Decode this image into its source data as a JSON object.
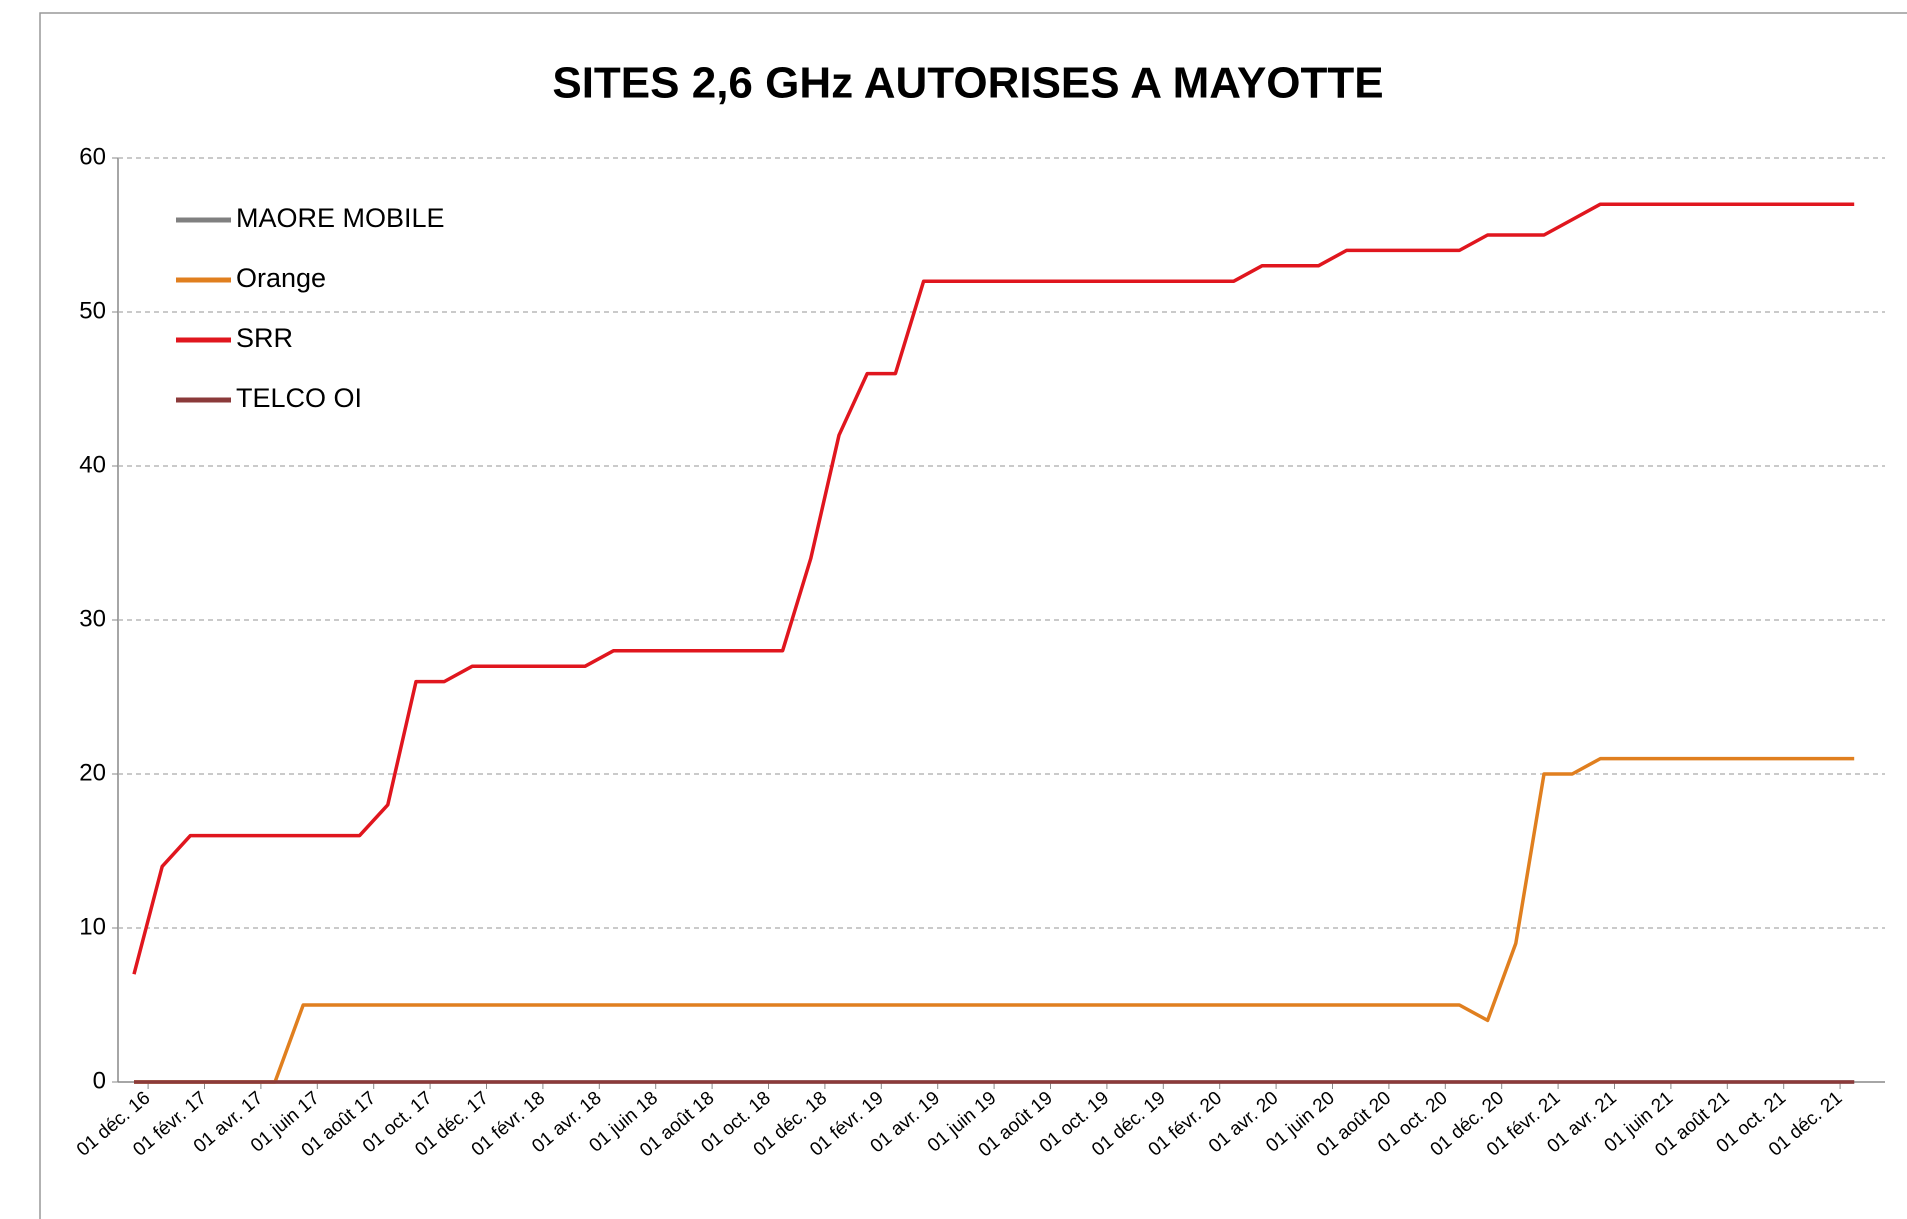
{
  "chart_data": {
    "type": "line",
    "title": "SITES 2,6 GHz AUTORISES A MAYOTTE",
    "categories": [
      "01 déc. 16",
      null,
      "01 févr. 17",
      null,
      "01 avr. 17",
      null,
      "01 juin 17",
      null,
      "01 août 17",
      null,
      "01 oct. 17",
      null,
      "01 déc. 17",
      null,
      "01 févr. 18",
      null,
      "01 avr. 18",
      null,
      "01 juin 18",
      null,
      "01 août 18",
      null,
      "01 oct. 18",
      null,
      "01 déc. 18",
      null,
      "01 févr. 19",
      null,
      "01 avr. 19",
      null,
      "01 juin 19",
      null,
      "01 août 19",
      null,
      "01 oct. 19",
      null,
      "01 déc. 19",
      null,
      "01 févr. 20",
      null,
      "01 avr. 20",
      null,
      "01 juin 20",
      null,
      "01 août 20",
      null,
      "01 oct. 20",
      null,
      "01 déc. 20",
      null,
      "01 févr. 21",
      null,
      "01 avr. 21",
      null,
      "01 juin 21",
      null,
      "01 août 21",
      null,
      "01 oct. 21",
      null,
      "01 déc. 21",
      null
    ],
    "series": [
      {
        "name": "MAORE MOBILE",
        "color": "#808080",
        "values": [
          0,
          0,
          0,
          0,
          0,
          0,
          0,
          0,
          0,
          0,
          0,
          0,
          0,
          0,
          0,
          0,
          0,
          0,
          0,
          0,
          0,
          0,
          0,
          0,
          0,
          0,
          0,
          0,
          0,
          0,
          0,
          0,
          0,
          0,
          0,
          0,
          0,
          0,
          0,
          0,
          0,
          0,
          0,
          0,
          0,
          0,
          0,
          0,
          0,
          0,
          0,
          0,
          0,
          0,
          0,
          0,
          0,
          0,
          0,
          0,
          0,
          0
        ]
      },
      {
        "name": "Orange",
        "color": "#e07f1f",
        "values": [
          0,
          0,
          0,
          0,
          0,
          0,
          5,
          5,
          5,
          5,
          5,
          5,
          5,
          5,
          5,
          5,
          5,
          5,
          5,
          5,
          5,
          5,
          5,
          5,
          5,
          5,
          5,
          5,
          5,
          5,
          5,
          5,
          5,
          5,
          5,
          5,
          5,
          5,
          5,
          5,
          5,
          5,
          5,
          5,
          5,
          5,
          5,
          5,
          4,
          9,
          20,
          20,
          21,
          21,
          21,
          21,
          21,
          21,
          21,
          21,
          21,
          21
        ]
      },
      {
        "name": "SRR",
        "color": "#e0161e",
        "values": [
          7,
          14,
          16,
          16,
          16,
          16,
          16,
          16,
          16,
          18,
          26,
          26,
          27,
          27,
          27,
          27,
          27,
          28,
          28,
          28,
          28,
          28,
          28,
          28,
          34,
          42,
          46,
          46,
          52,
          52,
          52,
          52,
          52,
          52,
          52,
          52,
          52,
          52,
          52,
          52,
          53,
          53,
          53,
          54,
          54,
          54,
          54,
          54,
          55,
          55,
          55,
          56,
          57,
          57,
          57,
          57,
          57,
          57,
          57,
          57,
          57,
          57
        ]
      },
      {
        "name": "TELCO OI",
        "color": "#8b3a3a",
        "values": [
          0,
          0,
          0,
          0,
          0,
          0,
          0,
          0,
          0,
          0,
          0,
          0,
          0,
          0,
          0,
          0,
          0,
          0,
          0,
          0,
          0,
          0,
          0,
          0,
          0,
          0,
          0,
          0,
          0,
          0,
          0,
          0,
          0,
          0,
          0,
          0,
          0,
          0,
          0,
          0,
          0,
          0,
          0,
          0,
          0,
          0,
          0,
          0,
          0,
          0,
          0,
          0,
          0,
          0,
          0,
          0,
          0,
          0,
          0,
          0,
          0,
          0
        ]
      }
    ],
    "ylim": [
      0,
      60
    ],
    "yticks": [
      0,
      10,
      20,
      30,
      40,
      50,
      60
    ],
    "grid": true,
    "legend": "top-left"
  }
}
